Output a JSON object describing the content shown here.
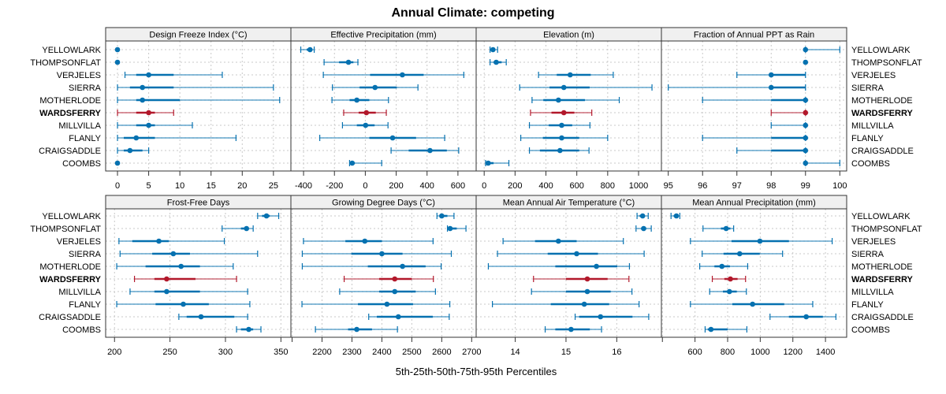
{
  "chart_data": {
    "type": "dotplot-percentile-ranges",
    "title": "Annual Climate: competing",
    "xlabel": "5th-25th-50th-75th-95th Percentiles",
    "ylabel": "",
    "grid": true,
    "legend": "none",
    "percentiles": [
      "5th",
      "25th",
      "50th",
      "75th",
      "95th"
    ],
    "categories": [
      "YELLOWLARK",
      "THOMPSONFLAT",
      "VERJELES",
      "SIERRA",
      "MOTHERLODE",
      "WARDSFERRY",
      "MILLVILLA",
      "FLANLY",
      "CRAIGSADDLE",
      "COOMBS"
    ],
    "highlight": "WARDSFERRY",
    "colors": {
      "default": "#0571B0",
      "highlight": "#B2182B",
      "strip_bg": "#F0F0F0",
      "grid": "#C8C8C8"
    },
    "panels": [
      {
        "title": "Design Freeze Index (°C)",
        "xlim": [
          -1.9,
          27.8
        ],
        "ticks": [
          0,
          5,
          10,
          15,
          20,
          25
        ],
        "tick_labels": [
          "0",
          "5",
          "10",
          "15",
          "20",
          "25"
        ],
        "values": {
          "YELLOWLARK": [
            0,
            0,
            0,
            0,
            0
          ],
          "THOMPSONFLAT": [
            0,
            0,
            0,
            0,
            0
          ],
          "VERJELES": [
            1.2,
            3,
            5,
            9,
            16.8
          ],
          "SIERRA": [
            0,
            2,
            4,
            9,
            25
          ],
          "MOTHERLODE": [
            0,
            3,
            4,
            10,
            26
          ],
          "WARDSFERRY": [
            0,
            3,
            5,
            6,
            9
          ],
          "MILLVILLA": [
            0,
            3,
            5,
            6,
            12
          ],
          "FLANLY": [
            0,
            1,
            3,
            6,
            19
          ],
          "CRAIGSADDLE": [
            0,
            1,
            2,
            4,
            5
          ],
          "COOMBS": [
            0,
            0,
            0,
            0,
            0
          ]
        }
      },
      {
        "title": "Effective Precipitation (mm)",
        "xlim": [
          -482,
          718
        ],
        "ticks": [
          -400,
          -200,
          0,
          200,
          400,
          600
        ],
        "tick_labels": [
          "-400",
          "-200",
          "0",
          "200",
          "400",
          "600"
        ],
        "values": {
          "YELLOWLARK": [
            -418,
            -380,
            -358,
            -345,
            -331
          ],
          "THOMPSONFLAT": [
            -267,
            -170,
            -109,
            -77,
            -48
          ],
          "VERJELES": [
            -272,
            31,
            240,
            378,
            638
          ],
          "SIERRA": [
            -213,
            -37,
            63,
            204,
            341
          ],
          "MOTHERLODE": [
            -216,
            -102,
            -55,
            26,
            150
          ],
          "WARDSFERRY": [
            -140,
            -43,
            7,
            68,
            136
          ],
          "MILLVILLA": [
            -148,
            -55,
            2,
            60,
            147
          ],
          "FLANLY": [
            -295,
            26,
            177,
            329,
            514
          ],
          "CRAIGSADDLE": [
            167,
            281,
            419,
            528,
            605
          ],
          "COOMBS": [
            -102,
            -94,
            -85,
            -68,
            106
          ]
        }
      },
      {
        "title": "Elevation (m)",
        "xlim": [
          -52,
          1148
        ],
        "ticks": [
          0,
          200,
          400,
          600,
          800,
          1000
        ],
        "tick_labels": [
          "0",
          "200",
          "400",
          "600",
          "800",
          "1000"
        ],
        "values": {
          "YELLOWLARK": [
            38,
            50,
            57,
            70,
            87
          ],
          "THOMPSONFLAT": [
            38,
            61,
            78,
            113,
            143
          ],
          "VERJELES": [
            352,
            470,
            557,
            690,
            836
          ],
          "SIERRA": [
            230,
            423,
            516,
            683,
            1087
          ],
          "MOTHERLODE": [
            310,
            383,
            481,
            653,
            875
          ],
          "WARDSFERRY": [
            300,
            436,
            516,
            584,
            697
          ],
          "MILLVILLA": [
            293,
            418,
            502,
            570,
            685
          ],
          "FLANLY": [
            237,
            380,
            502,
            615,
            800
          ],
          "CRAIGSADDLE": [
            293,
            361,
            491,
            615,
            679
          ],
          "COOMBS": [
            9,
            17,
            26,
            61,
            160
          ]
        }
      },
      {
        "title": "Fraction of Annual PPT as Rain",
        "xlim": [
          94.8,
          100.2
        ],
        "ticks": [
          95,
          96,
          97,
          98,
          99,
          100
        ],
        "tick_labels": [
          "95",
          "96",
          "97",
          "98",
          "99",
          "100"
        ],
        "values": {
          "YELLOWLARK": [
            99,
            99,
            99,
            99,
            100
          ],
          "THOMPSONFLAT": [
            99,
            99,
            99,
            99,
            99
          ],
          "VERJELES": [
            97,
            98,
            98,
            99,
            99
          ],
          "SIERRA": [
            95,
            98,
            98,
            99,
            99
          ],
          "MOTHERLODE": [
            96,
            98,
            99,
            99,
            99
          ],
          "WARDSFERRY": [
            98,
            99,
            99,
            99,
            99
          ],
          "MILLVILLA": [
            98,
            99,
            99,
            99,
            99
          ],
          "FLANLY": [
            96,
            98,
            99,
            99,
            99
          ],
          "CRAIGSADDLE": [
            97,
            98,
            99,
            99,
            99
          ],
          "COOMBS": [
            99,
            99,
            99,
            99,
            100
          ]
        }
      },
      {
        "title": "Frost-Free Days",
        "xlim": [
          192,
          359
        ],
        "ticks": [
          200,
          250,
          300,
          350
        ],
        "tick_labels": [
          "200",
          "250",
          "300",
          "350"
        ],
        "values": {
          "YELLOWLARK": [
            329,
            333,
            337,
            340,
            348
          ],
          "THOMPSONFLAT": [
            297,
            314,
            319,
            321,
            325
          ],
          "VERJELES": [
            204,
            216,
            240,
            249,
            299
          ],
          "SIERRA": [
            205,
            234,
            253,
            268,
            329
          ],
          "MOTHERLODE": [
            202,
            228,
            260,
            277,
            307
          ],
          "WARDSFERRY": [
            218,
            236,
            247,
            273,
            310
          ],
          "MILLVILLA": [
            214,
            236,
            247,
            277,
            320
          ],
          "FLANLY": [
            202,
            237,
            262,
            285,
            322
          ],
          "CRAIGSADDLE": [
            258,
            265,
            278,
            308,
            320
          ],
          "COOMBS": [
            310,
            314,
            321,
            325,
            332
          ]
        }
      },
      {
        "title": "Growing Degree Days (°C)",
        "xlim": [
          2096,
          2715
        ],
        "ticks": [
          2100,
          2200,
          2300,
          2400,
          2500,
          2600,
          2700
        ],
        "tick_labels": [
          "",
          "2200",
          "2300",
          "2400",
          "2500",
          "2600",
          "2700"
        ],
        "values": {
          "YELLOWLARK": [
            2584,
            2593,
            2600,
            2619,
            2641
          ],
          "THOMPSONFLAT": [
            2619,
            2624,
            2628,
            2650,
            2681
          ],
          "VERJELES": [
            2138,
            2278,
            2343,
            2400,
            2571
          ],
          "SIERRA": [
            2134,
            2298,
            2400,
            2469,
            2632
          ],
          "MOTHERLODE": [
            2134,
            2353,
            2469,
            2546,
            2598
          ],
          "WARDSFERRY": [
            2274,
            2391,
            2443,
            2500,
            2572
          ],
          "MILLVILLA": [
            2259,
            2391,
            2443,
            2513,
            2579
          ],
          "FLANLY": [
            2133,
            2320,
            2417,
            2504,
            2627
          ],
          "CRAIGSADDLE": [
            2356,
            2383,
            2455,
            2570,
            2625
          ],
          "COOMBS": [
            2178,
            2287,
            2316,
            2367,
            2452
          ]
        }
      },
      {
        "title": "Mean Annual Air Temperature (°C)",
        "xlim": [
          13.23,
          16.88
        ],
        "ticks": [
          13,
          14,
          15,
          16
        ],
        "tick_labels": [
          "",
          "14",
          "15",
          "16"
        ],
        "values": {
          "YELLOWLARK": [
            16.4,
            16.45,
            16.51,
            16.55,
            16.62
          ],
          "THOMPSONFLAT": [
            16.38,
            16.48,
            16.53,
            16.58,
            16.68
          ],
          "VERJELES": [
            13.76,
            14.39,
            14.85,
            15.21,
            16.13
          ],
          "SIERRA": [
            13.65,
            14.64,
            15.21,
            15.63,
            16.54
          ],
          "MOTHERLODE": [
            13.47,
            14.79,
            15.6,
            16.01,
            16.25
          ],
          "WARDSFERRY": [
            14.36,
            15.0,
            15.42,
            15.82,
            16.24
          ],
          "MILLVILLA": [
            14.32,
            15.0,
            15.42,
            15.88,
            16.3
          ],
          "FLANLY": [
            13.55,
            14.7,
            15.36,
            15.85,
            16.44
          ],
          "CRAIGSADDLE": [
            15.18,
            15.26,
            15.68,
            16.31,
            16.63
          ],
          "COOMBS": [
            14.59,
            14.79,
            15.1,
            15.47,
            15.7
          ]
        }
      },
      {
        "title": "Mean Annual Precipitation (mm)",
        "xlim": [
          394,
          1530
        ],
        "ticks": [
          400,
          600,
          800,
          1000,
          1200,
          1400
        ],
        "tick_labels": [
          "",
          "600",
          "800",
          "1000",
          "1200",
          "1400"
        ],
        "values": {
          "YELLOWLARK": [
            453,
            469,
            486,
            497,
            507
          ],
          "THOMPSONFLAT": [
            649,
            759,
            791,
            817,
            837
          ],
          "VERJELES": [
            572,
            824,
            998,
            1176,
            1441
          ],
          "SIERRA": [
            644,
            775,
            874,
            997,
            1137
          ],
          "MOTHERLODE": [
            629,
            719,
            765,
            814,
            923
          ],
          "WARDSFERRY": [
            706,
            780,
            817,
            861,
            910
          ],
          "MILLVILLA": [
            690,
            771,
            811,
            856,
            915
          ],
          "FLANLY": [
            572,
            829,
            953,
            1147,
            1322
          ],
          "CRAIGSADDLE": [
            1060,
            1176,
            1282,
            1384,
            1464
          ],
          "COOMBS": [
            662,
            678,
            698,
            800,
            918
          ]
        }
      }
    ]
  }
}
